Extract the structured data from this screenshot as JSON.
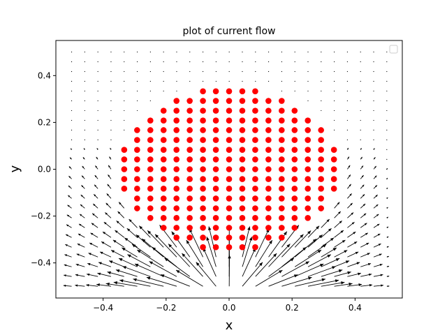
{
  "chart_data": {
    "type": "scatter",
    "title": "plot of current flow",
    "xlabel": "x",
    "ylabel": "y",
    "xlim": [
      -0.55,
      0.55
    ],
    "ylim": [
      -0.55,
      0.55
    ],
    "xticks": [
      -0.4,
      -0.2,
      0.0,
      0.2,
      0.4
    ],
    "yticks": [
      -0.4,
      -0.2,
      0.0,
      0.2,
      0.4
    ],
    "xtick_labels": [
      "−0.4",
      "−0.2",
      "0.0",
      "0.2",
      "0.4"
    ],
    "ytick_labels": [
      "−0.4",
      "−0.2",
      "0.0",
      "0.2",
      "0.4"
    ],
    "grid": false,
    "legend": {
      "placement": "upper-right",
      "entries": []
    },
    "marker_color": "#ff0000",
    "arrow_color": "#000000",
    "marker_rows": [
      {
        "y": 0.333,
        "x": [
          -0.083,
          -0.042,
          0.0,
          0.042,
          0.083
        ]
      },
      {
        "y": 0.292,
        "x": [
          -0.167,
          -0.125,
          -0.083,
          -0.042,
          0.0,
          0.042,
          0.083,
          0.125,
          0.167
        ]
      },
      {
        "y": 0.25,
        "x": [
          -0.208,
          -0.167,
          -0.125,
          -0.083,
          -0.042,
          0.0,
          0.042,
          0.083,
          0.125,
          0.167,
          0.208
        ]
      },
      {
        "y": 0.208,
        "x": [
          -0.25,
          -0.208,
          -0.167,
          -0.125,
          -0.083,
          -0.042,
          0.0,
          0.042,
          0.083,
          0.125,
          0.167,
          0.208,
          0.25
        ]
      },
      {
        "y": 0.167,
        "x": [
          -0.292,
          -0.25,
          -0.208,
          -0.167,
          -0.125,
          -0.083,
          -0.042,
          0.0,
          0.042,
          0.083,
          0.125,
          0.167,
          0.208,
          0.25,
          0.292
        ]
      },
      {
        "y": 0.125,
        "x": [
          -0.292,
          -0.25,
          -0.208,
          -0.167,
          -0.125,
          -0.083,
          -0.042,
          0.0,
          0.042,
          0.083,
          0.125,
          0.167,
          0.208,
          0.25,
          0.292
        ]
      },
      {
        "y": 0.083,
        "x": [
          -0.333,
          -0.292,
          -0.25,
          -0.208,
          -0.167,
          -0.125,
          -0.083,
          -0.042,
          0.0,
          0.042,
          0.083,
          0.125,
          0.167,
          0.208,
          0.25,
          0.292,
          0.333
        ]
      },
      {
        "y": 0.042,
        "x": [
          -0.333,
          -0.292,
          -0.25,
          -0.208,
          -0.167,
          -0.125,
          -0.083,
          -0.042,
          0.0,
          0.042,
          0.083,
          0.125,
          0.167,
          0.208,
          0.25,
          0.292,
          0.333
        ]
      },
      {
        "y": 0.0,
        "x": [
          -0.333,
          -0.292,
          -0.25,
          -0.208,
          -0.167,
          -0.125,
          -0.083,
          -0.042,
          0.0,
          0.042,
          0.083,
          0.125,
          0.167,
          0.208,
          0.25,
          0.292,
          0.333
        ]
      },
      {
        "y": -0.042,
        "x": [
          -0.333,
          -0.292,
          -0.25,
          -0.208,
          -0.167,
          -0.125,
          -0.083,
          -0.042,
          0.0,
          0.042,
          0.083,
          0.125,
          0.167,
          0.208,
          0.25,
          0.292,
          0.333
        ]
      },
      {
        "y": -0.083,
        "x": [
          -0.333,
          -0.292,
          -0.25,
          -0.208,
          -0.167,
          -0.125,
          -0.083,
          -0.042,
          0.0,
          0.042,
          0.083,
          0.125,
          0.167,
          0.208,
          0.25,
          0.292,
          0.333
        ]
      },
      {
        "y": -0.125,
        "x": [
          -0.292,
          -0.25,
          -0.208,
          -0.167,
          -0.125,
          -0.083,
          -0.042,
          0.0,
          0.042,
          0.083,
          0.125,
          0.167,
          0.208,
          0.25,
          0.292
        ]
      },
      {
        "y": -0.167,
        "x": [
          -0.292,
          -0.25,
          -0.208,
          -0.167,
          -0.125,
          -0.083,
          -0.042,
          0.0,
          0.042,
          0.083,
          0.125,
          0.167,
          0.208,
          0.25,
          0.292
        ]
      },
      {
        "y": -0.208,
        "x": [
          -0.25,
          -0.208,
          -0.167,
          -0.125,
          -0.083,
          -0.042,
          0.0,
          0.042,
          0.083,
          0.125,
          0.167,
          0.208,
          0.25
        ]
      },
      {
        "y": -0.25,
        "x": [
          -0.208,
          -0.167,
          -0.125,
          -0.083,
          -0.042,
          0.0,
          0.042,
          0.083,
          0.125,
          0.167,
          0.208
        ]
      },
      {
        "y": -0.292,
        "x": [
          -0.167,
          -0.125,
          -0.083,
          -0.042,
          0.0,
          0.042,
          0.083,
          0.125,
          0.167
        ]
      },
      {
        "y": -0.333,
        "x": [
          -0.083,
          -0.042,
          0.0,
          0.042,
          0.083
        ]
      }
    ],
    "quiver": {
      "x_min": -0.5,
      "x_max": 0.5,
      "x_step": 0.0417,
      "y_min": -0.5,
      "y_max": 0.5,
      "y_step": 0.0417,
      "source": [
        0.0,
        -0.55
      ],
      "region_radius": 0.36,
      "description_values": "vectors point away from (0, -0.55); magnitude largest near bottom edge"
    }
  }
}
